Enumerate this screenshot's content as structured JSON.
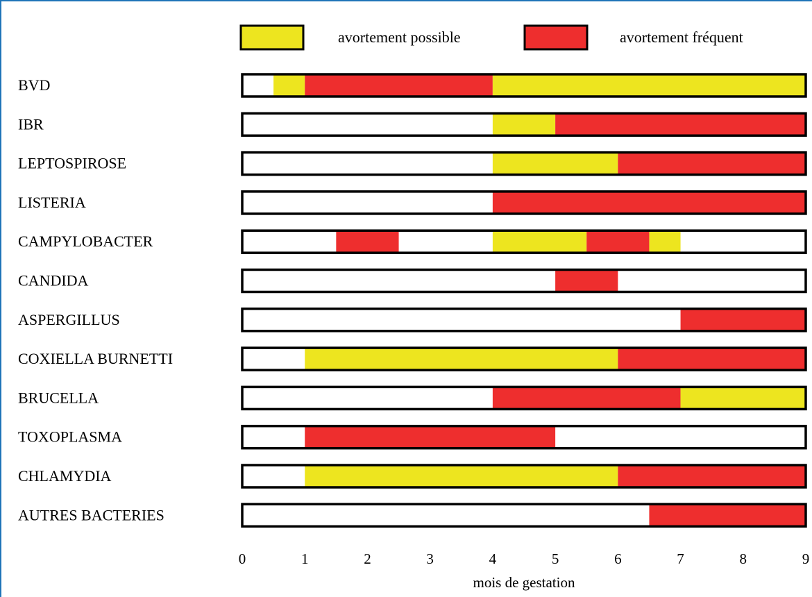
{
  "chart_data": {
    "type": "bar",
    "title": "",
    "xlabel": "mois de gestation",
    "ylabel": "",
    "xlim": [
      0,
      9
    ],
    "x_ticks": [
      "0",
      "1",
      "2",
      "3",
      "4",
      "5",
      "6",
      "7",
      "8",
      "9"
    ],
    "legend": {
      "placement": "top",
      "entries": [
        {
          "key": "possible",
          "label": "avortement possible",
          "color": "#ede51f"
        },
        {
          "key": "frequent",
          "label": "avortement fréquent",
          "color": "#ee2e2e"
        }
      ]
    },
    "categories": [
      "BVD",
      "IBR",
      "LEPTOSPIROSE",
      "LISTERIA",
      "CAMPYLOBACTER",
      "CANDIDA",
      "ASPERGILLUS",
      "COXIELLA BURNETTI",
      "BRUCELLA",
      "TOXOPLASMA",
      "CHLAMYDIA",
      "AUTRES BACTERIES"
    ],
    "rows": [
      {
        "name": "BVD",
        "segments": [
          {
            "start": 0.5,
            "end": 1,
            "level": "possible"
          },
          {
            "start": 1,
            "end": 4,
            "level": "frequent"
          },
          {
            "start": 4,
            "end": 9,
            "level": "possible"
          }
        ]
      },
      {
        "name": "IBR",
        "segments": [
          {
            "start": 4,
            "end": 5,
            "level": "possible"
          },
          {
            "start": 5,
            "end": 9,
            "level": "frequent"
          }
        ]
      },
      {
        "name": "LEPTOSPIROSE",
        "segments": [
          {
            "start": 4,
            "end": 6,
            "level": "possible"
          },
          {
            "start": 6,
            "end": 9,
            "level": "frequent"
          }
        ]
      },
      {
        "name": "LISTERIA",
        "segments": [
          {
            "start": 4,
            "end": 9,
            "level": "frequent"
          }
        ]
      },
      {
        "name": "CAMPYLOBACTER",
        "segments": [
          {
            "start": 1.5,
            "end": 2.5,
            "level": "frequent"
          },
          {
            "start": 4,
            "end": 5.5,
            "level": "possible"
          },
          {
            "start": 5.5,
            "end": 6.5,
            "level": "frequent"
          },
          {
            "start": 6.5,
            "end": 7,
            "level": "possible"
          }
        ]
      },
      {
        "name": "CANDIDA",
        "segments": [
          {
            "start": 5,
            "end": 6,
            "level": "frequent"
          }
        ]
      },
      {
        "name": "ASPERGILLUS",
        "segments": [
          {
            "start": 7,
            "end": 9,
            "level": "frequent"
          }
        ]
      },
      {
        "name": "COXIELLA BURNETTI",
        "segments": [
          {
            "start": 1,
            "end": 6,
            "level": "possible"
          },
          {
            "start": 6,
            "end": 9,
            "level": "frequent"
          }
        ]
      },
      {
        "name": "BRUCELLA",
        "segments": [
          {
            "start": 4,
            "end": 7,
            "level": "frequent"
          },
          {
            "start": 7,
            "end": 9,
            "level": "possible"
          }
        ]
      },
      {
        "name": "TOXOPLASMA",
        "segments": [
          {
            "start": 1,
            "end": 5,
            "level": "frequent"
          }
        ]
      },
      {
        "name": "CHLAMYDIA",
        "segments": [
          {
            "start": 1,
            "end": 6,
            "level": "possible"
          },
          {
            "start": 6,
            "end": 9,
            "level": "frequent"
          }
        ]
      },
      {
        "name": "AUTRES BACTERIES",
        "segments": [
          {
            "start": 6.5,
            "end": 9,
            "level": "frequent"
          }
        ]
      }
    ]
  }
}
